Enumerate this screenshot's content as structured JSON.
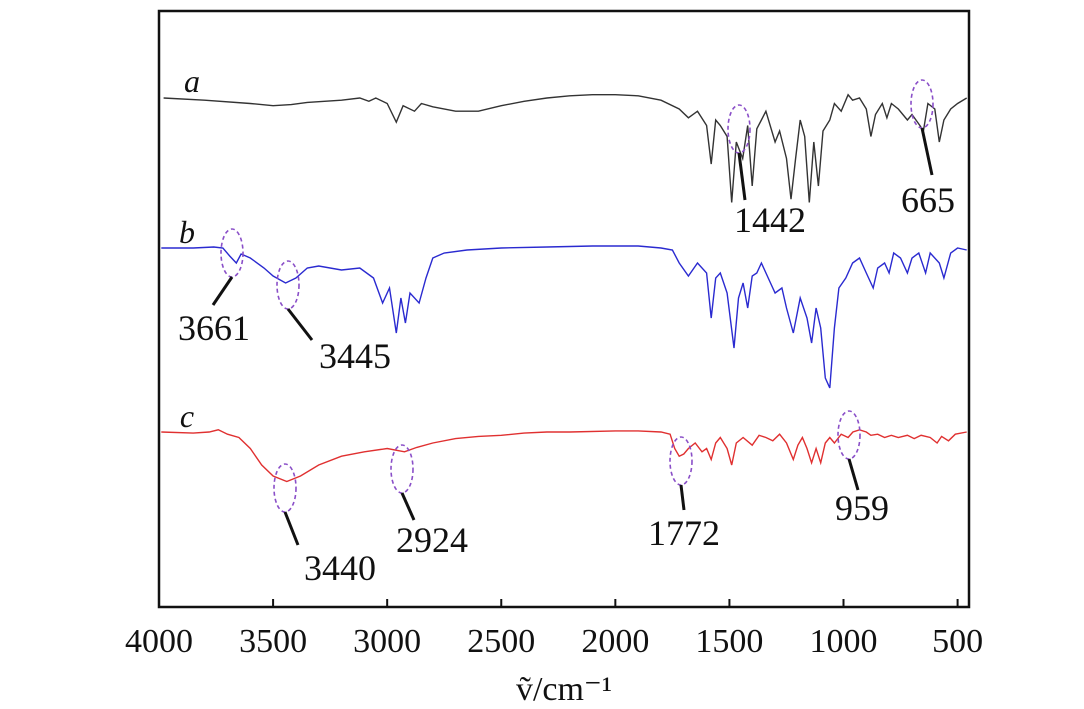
{
  "chart_data": {
    "type": "line",
    "title": "",
    "xlabel": "ṽ/cm⁻¹",
    "ylabel": "",
    "xlim": [
      4000,
      450
    ],
    "x_reversed": true,
    "xticks": [
      4000,
      3500,
      3000,
      2500,
      2000,
      1500,
      1000,
      500
    ],
    "grid": false,
    "colors": {
      "a": "#333333",
      "b": "#2a2ad0",
      "c": "#e03030",
      "marker": "#8a4fc8"
    },
    "series": [
      {
        "name": "a",
        "color": "#333333",
        "points": [
          [
            3980,
            0.0
          ],
          [
            3800,
            -0.02
          ],
          [
            3600,
            -0.05
          ],
          [
            3500,
            -0.07
          ],
          [
            3420,
            -0.06
          ],
          [
            3350,
            -0.04
          ],
          [
            3200,
            -0.02
          ],
          [
            3120,
            0.0
          ],
          [
            3080,
            -0.03
          ],
          [
            3050,
            0.0
          ],
          [
            3000,
            -0.05
          ],
          [
            2960,
            -0.22
          ],
          [
            2930,
            -0.07
          ],
          [
            2880,
            -0.12
          ],
          [
            2850,
            -0.05
          ],
          [
            2800,
            -0.08
          ],
          [
            2700,
            -0.12
          ],
          [
            2600,
            -0.12
          ],
          [
            2500,
            -0.07
          ],
          [
            2400,
            -0.03
          ],
          [
            2300,
            0.0
          ],
          [
            2200,
            0.02
          ],
          [
            2100,
            0.03
          ],
          [
            2000,
            0.03
          ],
          [
            1900,
            0.02
          ],
          [
            1800,
            -0.02
          ],
          [
            1720,
            -0.1
          ],
          [
            1680,
            -0.18
          ],
          [
            1640,
            -0.12
          ],
          [
            1600,
            -0.25
          ],
          [
            1580,
            -0.6
          ],
          [
            1560,
            -0.2
          ],
          [
            1540,
            -0.25
          ],
          [
            1510,
            -0.35
          ],
          [
            1490,
            -0.95
          ],
          [
            1470,
            -0.4
          ],
          [
            1442,
            -0.55
          ],
          [
            1420,
            -0.25
          ],
          [
            1400,
            -0.8
          ],
          [
            1380,
            -0.28
          ],
          [
            1360,
            -0.2
          ],
          [
            1340,
            -0.12
          ],
          [
            1300,
            -0.4
          ],
          [
            1280,
            -0.3
          ],
          [
            1250,
            -0.55
          ],
          [
            1230,
            -0.92
          ],
          [
            1210,
            -0.55
          ],
          [
            1190,
            -0.2
          ],
          [
            1170,
            -0.35
          ],
          [
            1150,
            -0.95
          ],
          [
            1130,
            -0.4
          ],
          [
            1110,
            -0.8
          ],
          [
            1090,
            -0.3
          ],
          [
            1060,
            -0.2
          ],
          [
            1040,
            -0.05
          ],
          [
            1010,
            -0.12
          ],
          [
            980,
            0.03
          ],
          [
            960,
            -0.02
          ],
          [
            930,
            0.0
          ],
          [
            900,
            -0.1
          ],
          [
            880,
            -0.35
          ],
          [
            860,
            -0.15
          ],
          [
            830,
            -0.05
          ],
          [
            810,
            -0.18
          ],
          [
            790,
            -0.05
          ],
          [
            760,
            -0.1
          ],
          [
            720,
            -0.2
          ],
          [
            700,
            -0.15
          ],
          [
            665,
            -0.25
          ],
          [
            650,
            -0.3
          ],
          [
            630,
            -0.05
          ],
          [
            600,
            -0.1
          ],
          [
            580,
            -0.4
          ],
          [
            560,
            -0.2
          ],
          [
            530,
            -0.1
          ],
          [
            500,
            -0.05
          ],
          [
            460,
            0.0
          ]
        ]
      },
      {
        "name": "b",
        "color": "#2a2ad0",
        "points": [
          [
            3990,
            0.0
          ],
          [
            3850,
            0.0
          ],
          [
            3760,
            0.01
          ],
          [
            3720,
            0.0
          ],
          [
            3690,
            -0.08
          ],
          [
            3661,
            -0.15
          ],
          [
            3640,
            -0.06
          ],
          [
            3600,
            -0.1
          ],
          [
            3540,
            -0.2
          ],
          [
            3500,
            -0.28
          ],
          [
            3445,
            -0.35
          ],
          [
            3400,
            -0.3
          ],
          [
            3350,
            -0.2
          ],
          [
            3300,
            -0.18
          ],
          [
            3200,
            -0.22
          ],
          [
            3120,
            -0.2
          ],
          [
            3060,
            -0.3
          ],
          [
            3020,
            -0.55
          ],
          [
            2990,
            -0.4
          ],
          [
            2960,
            -0.85
          ],
          [
            2940,
            -0.5
          ],
          [
            2920,
            -0.75
          ],
          [
            2900,
            -0.45
          ],
          [
            2860,
            -0.55
          ],
          [
            2830,
            -0.3
          ],
          [
            2800,
            -0.1
          ],
          [
            2750,
            -0.05
          ],
          [
            2650,
            -0.02
          ],
          [
            2500,
            0.0
          ],
          [
            2300,
            0.01
          ],
          [
            2100,
            0.02
          ],
          [
            1900,
            0.02
          ],
          [
            1800,
            0.0
          ],
          [
            1750,
            -0.02
          ],
          [
            1720,
            -0.15
          ],
          [
            1680,
            -0.28
          ],
          [
            1640,
            -0.15
          ],
          [
            1600,
            -0.25
          ],
          [
            1580,
            -0.7
          ],
          [
            1560,
            -0.3
          ],
          [
            1540,
            -0.25
          ],
          [
            1510,
            -0.45
          ],
          [
            1480,
            -1.0
          ],
          [
            1460,
            -0.5
          ],
          [
            1440,
            -0.35
          ],
          [
            1420,
            -0.6
          ],
          [
            1400,
            -0.28
          ],
          [
            1380,
            -0.25
          ],
          [
            1360,
            -0.15
          ],
          [
            1320,
            -0.35
          ],
          [
            1300,
            -0.45
          ],
          [
            1270,
            -0.4
          ],
          [
            1250,
            -0.6
          ],
          [
            1220,
            -0.85
          ],
          [
            1190,
            -0.5
          ],
          [
            1160,
            -0.7
          ],
          [
            1140,
            -0.95
          ],
          [
            1120,
            -0.6
          ],
          [
            1100,
            -0.8
          ],
          [
            1080,
            -1.3
          ],
          [
            1060,
            -1.4
          ],
          [
            1040,
            -0.8
          ],
          [
            1020,
            -0.4
          ],
          [
            990,
            -0.3
          ],
          [
            960,
            -0.15
          ],
          [
            930,
            -0.1
          ],
          [
            900,
            -0.25
          ],
          [
            870,
            -0.4
          ],
          [
            850,
            -0.2
          ],
          [
            820,
            -0.15
          ],
          [
            800,
            -0.25
          ],
          [
            780,
            -0.05
          ],
          [
            750,
            -0.1
          ],
          [
            720,
            -0.25
          ],
          [
            700,
            -0.1
          ],
          [
            670,
            -0.05
          ],
          [
            640,
            -0.25
          ],
          [
            620,
            -0.05
          ],
          [
            580,
            -0.15
          ],
          [
            560,
            -0.3
          ],
          [
            530,
            -0.05
          ],
          [
            500,
            0.0
          ],
          [
            460,
            -0.02
          ]
        ]
      },
      {
        "name": "c",
        "color": "#e03030",
        "points": [
          [
            3990,
            0.0
          ],
          [
            3850,
            -0.01
          ],
          [
            3780,
            0.0
          ],
          [
            3740,
            0.02
          ],
          [
            3700,
            -0.02
          ],
          [
            3650,
            -0.05
          ],
          [
            3600,
            -0.15
          ],
          [
            3550,
            -0.3
          ],
          [
            3500,
            -0.4
          ],
          [
            3440,
            -0.45
          ],
          [
            3380,
            -0.4
          ],
          [
            3300,
            -0.3
          ],
          [
            3200,
            -0.22
          ],
          [
            3100,
            -0.18
          ],
          [
            3000,
            -0.15
          ],
          [
            2924,
            -0.18
          ],
          [
            2870,
            -0.14
          ],
          [
            2800,
            -0.1
          ],
          [
            2700,
            -0.06
          ],
          [
            2600,
            -0.04
          ],
          [
            2500,
            -0.03
          ],
          [
            2400,
            -0.01
          ],
          [
            2300,
            0.0
          ],
          [
            2200,
            0.0
          ],
          [
            2000,
            0.01
          ],
          [
            1900,
            0.01
          ],
          [
            1800,
            0.0
          ],
          [
            1760,
            -0.02
          ],
          [
            1740,
            -0.15
          ],
          [
            1720,
            -0.22
          ],
          [
            1700,
            -0.2
          ],
          [
            1680,
            -0.15
          ],
          [
            1650,
            -0.1
          ],
          [
            1620,
            -0.18
          ],
          [
            1600,
            -0.15
          ],
          [
            1580,
            -0.25
          ],
          [
            1560,
            -0.1
          ],
          [
            1540,
            -0.05
          ],
          [
            1510,
            -0.15
          ],
          [
            1490,
            -0.3
          ],
          [
            1470,
            -0.1
          ],
          [
            1440,
            -0.05
          ],
          [
            1400,
            -0.12
          ],
          [
            1370,
            -0.03
          ],
          [
            1340,
            -0.05
          ],
          [
            1310,
            -0.08
          ],
          [
            1280,
            -0.02
          ],
          [
            1250,
            -0.1
          ],
          [
            1220,
            -0.25
          ],
          [
            1200,
            -0.12
          ],
          [
            1180,
            -0.05
          ],
          [
            1160,
            -0.15
          ],
          [
            1140,
            -0.28
          ],
          [
            1120,
            -0.15
          ],
          [
            1100,
            -0.28
          ],
          [
            1080,
            -0.1
          ],
          [
            1060,
            -0.05
          ],
          [
            1040,
            -0.1
          ],
          [
            1010,
            -0.02
          ],
          [
            980,
            -0.05
          ],
          [
            959,
            0.0
          ],
          [
            930,
            0.02
          ],
          [
            900,
            0.0
          ],
          [
            880,
            -0.03
          ],
          [
            850,
            -0.02
          ],
          [
            820,
            -0.05
          ],
          [
            790,
            -0.03
          ],
          [
            760,
            -0.05
          ],
          [
            720,
            -0.03
          ],
          [
            690,
            -0.06
          ],
          [
            660,
            -0.03
          ],
          [
            620,
            -0.05
          ],
          [
            590,
            -0.1
          ],
          [
            570,
            -0.04
          ],
          [
            540,
            -0.08
          ],
          [
            510,
            -0.02
          ],
          [
            460,
            0.0
          ]
        ]
      }
    ],
    "annotations": [
      {
        "series": "a",
        "x": 1442,
        "label": "1442"
      },
      {
        "series": "a",
        "x": 665,
        "label": "665"
      },
      {
        "series": "b",
        "x": 3661,
        "label": "3661"
      },
      {
        "series": "b",
        "x": 3445,
        "label": "3445"
      },
      {
        "series": "c",
        "x": 3440,
        "label": "3440"
      },
      {
        "series": "c",
        "x": 2924,
        "label": "2924"
      },
      {
        "series": "c",
        "x": 1772,
        "label": "1772"
      },
      {
        "series": "c",
        "x": 959,
        "label": "959"
      }
    ]
  }
}
